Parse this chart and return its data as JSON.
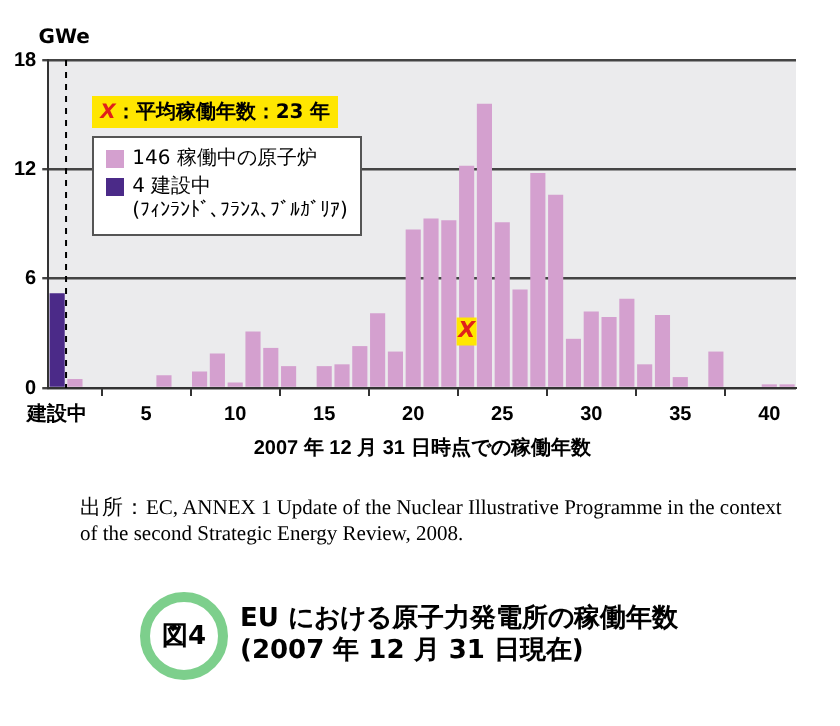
{
  "chart_data": {
    "type": "bar",
    "title": "EU における原子力発電所の稼働年数\n(2007 年 12 月 31 日現在)",
    "xlabel": "2007 年 12 月 31 日時点での稼働年数",
    "ylabel": "GWe",
    "legend_title": "X：平均稼働年数：23 年",
    "x": [
      0,
      1,
      2,
      3,
      4,
      5,
      6,
      7,
      8,
      9,
      10,
      11,
      12,
      13,
      14,
      15,
      16,
      17,
      18,
      19,
      20,
      21,
      22,
      23,
      24,
      25,
      26,
      27,
      28,
      29,
      30,
      31,
      32,
      33,
      34,
      35,
      36,
      37,
      38,
      39,
      40,
      41
    ],
    "series": [
      {
        "name": "146 稼働中の原子炉",
        "color": "#d4a0cf",
        "values": [
          null,
          0.5,
          0,
          0,
          0,
          0,
          0.7,
          0,
          0.9,
          1.9,
          0.3,
          3.1,
          2.2,
          1.2,
          0,
          1.2,
          1.3,
          2.3,
          4.1,
          2.0,
          8.7,
          9.3,
          9.2,
          12.2,
          15.6,
          9.1,
          5.4,
          11.8,
          10.6,
          2.7,
          4.2,
          3.9,
          4.9,
          1.3,
          4.0,
          0.6,
          0,
          2.0,
          0,
          0,
          0.2,
          0.2
        ]
      },
      {
        "name": "4 建設中\n(ﾌｨﾝﾗﾝﾄﾞ､ﾌﾗﾝｽ､ﾌﾞﾙｶﾞﾘｱ)",
        "color": "#4b2a88",
        "values": [
          5.2,
          null,
          null,
          null,
          null,
          null,
          null,
          null,
          null,
          null,
          null,
          null,
          null,
          null,
          null,
          null,
          null,
          null,
          null,
          null,
          null,
          null,
          null,
          null,
          null,
          null,
          null,
          null,
          null,
          null,
          null,
          null,
          null,
          null,
          null,
          null,
          null,
          null,
          null,
          null,
          null,
          null
        ]
      }
    ],
    "xlim": [
      -0.5,
      41.5
    ],
    "xticks": [
      {
        "value": 0,
        "label": "建設中"
      },
      5,
      10,
      15,
      20,
      25,
      30,
      35,
      40
    ],
    "ylim": [
      0,
      18
    ],
    "yticks": [
      0,
      6,
      12,
      18
    ],
    "grid": "y",
    "legend": "top left",
    "ref_lines": [
      {
        "axis": "x",
        "value": 0.5,
        "color": "#000000",
        "line_style": "dashed"
      }
    ],
    "annotations": [
      {
        "text": "X",
        "x": 23,
        "y": 3.1
      },
      "出所：EC, ANNEX 1 Update of the Nuclear Illustrative Programme in the context of the second Strategic Energy Review, 2008.",
      "図4"
    ]
  }
}
